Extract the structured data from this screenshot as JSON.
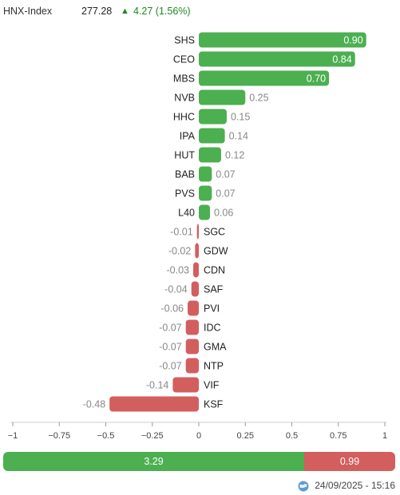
{
  "header": {
    "index_name": "HNX-Index",
    "index_value": "277.28",
    "arrow": "▲",
    "change": "4.27 (1.56%)",
    "up_color": "#1f8a1f"
  },
  "chart_data": {
    "type": "bar",
    "orientation": "horizontal",
    "categories": [
      "SHS",
      "CEO",
      "MBS",
      "NVB",
      "HHC",
      "IPA",
      "HUT",
      "BAB",
      "PVS",
      "L40",
      "SGC",
      "GDW",
      "CDN",
      "SAF",
      "PVI",
      "IDC",
      "GMA",
      "NTP",
      "VIF",
      "KSF"
    ],
    "values": [
      0.9,
      0.84,
      0.7,
      0.25,
      0.15,
      0.14,
      0.12,
      0.07,
      0.07,
      0.06,
      -0.01,
      -0.02,
      -0.03,
      -0.04,
      -0.06,
      -0.07,
      -0.07,
      -0.07,
      -0.14,
      -0.48
    ],
    "value_labels": [
      "0.90",
      "0.84",
      "0.70",
      "0.25",
      "0.15",
      "0.14",
      "0.12",
      "0.07",
      "0.07",
      "0.06",
      "-0.01",
      "-0.02",
      "-0.03",
      "-0.04",
      "-0.06",
      "-0.07",
      "-0.07",
      "-0.07",
      "-0.14",
      "-0.48"
    ],
    "xlim": [
      -1,
      1
    ],
    "xticks": [
      -1,
      -0.75,
      -0.5,
      -0.25,
      0,
      0.25,
      0.5,
      0.75,
      1
    ],
    "xtick_labels": [
      "−1",
      "−0.75",
      "−0.5",
      "−0.25",
      "0",
      "0.25",
      "0.5",
      "0.75",
      "1"
    ],
    "positive_color": "#4caf50",
    "negative_color": "#d35e5e",
    "grid": false
  },
  "summary": {
    "positive_total": "3.29",
    "negative_total": "0.99",
    "positive_value": 3.29,
    "negative_value": 0.99
  },
  "timestamp": "24/09/2025 - 15:16"
}
